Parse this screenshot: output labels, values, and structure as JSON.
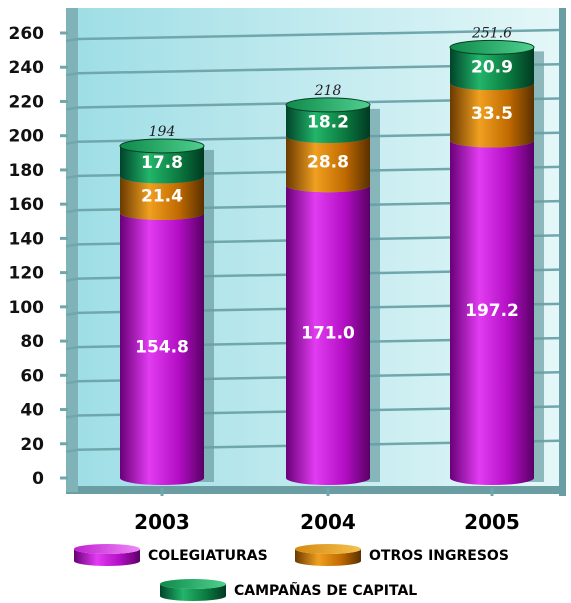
{
  "chart_data": {
    "type": "bar",
    "stacked": true,
    "categories": [
      "2003",
      "2004",
      "2005"
    ],
    "series": [
      {
        "name": "COLEGIATURAS",
        "values": [
          154.8,
          171.0,
          197.2
        ],
        "labels": [
          "154.8",
          "171.0",
          "197.2"
        ],
        "color": "#c40fd2"
      },
      {
        "name": "OTROS INGRESOS",
        "values": [
          21.4,
          28.8,
          33.5
        ],
        "labels": [
          "21.4",
          "28.8",
          "33.5"
        ],
        "color": "#d07a0a"
      },
      {
        "name": "CAMPAÑAS DE CAPITAL",
        "values": [
          17.8,
          18.2,
          20.9
        ],
        "labels": [
          "17.8",
          "18.2",
          "20.9"
        ],
        "color": "#0f9a52"
      }
    ],
    "totals": [
      "194",
      "218",
      "251.6"
    ],
    "yticks": [
      "0",
      "20",
      "40",
      "60",
      "80",
      "100",
      "120",
      "140",
      "160",
      "180",
      "200",
      "220",
      "240",
      "260"
    ],
    "ylim": [
      0,
      260
    ],
    "grid": true,
    "legend_position": "bottom",
    "background_color": "#b3e6ec",
    "gridline_color": "#6fa7ad"
  }
}
